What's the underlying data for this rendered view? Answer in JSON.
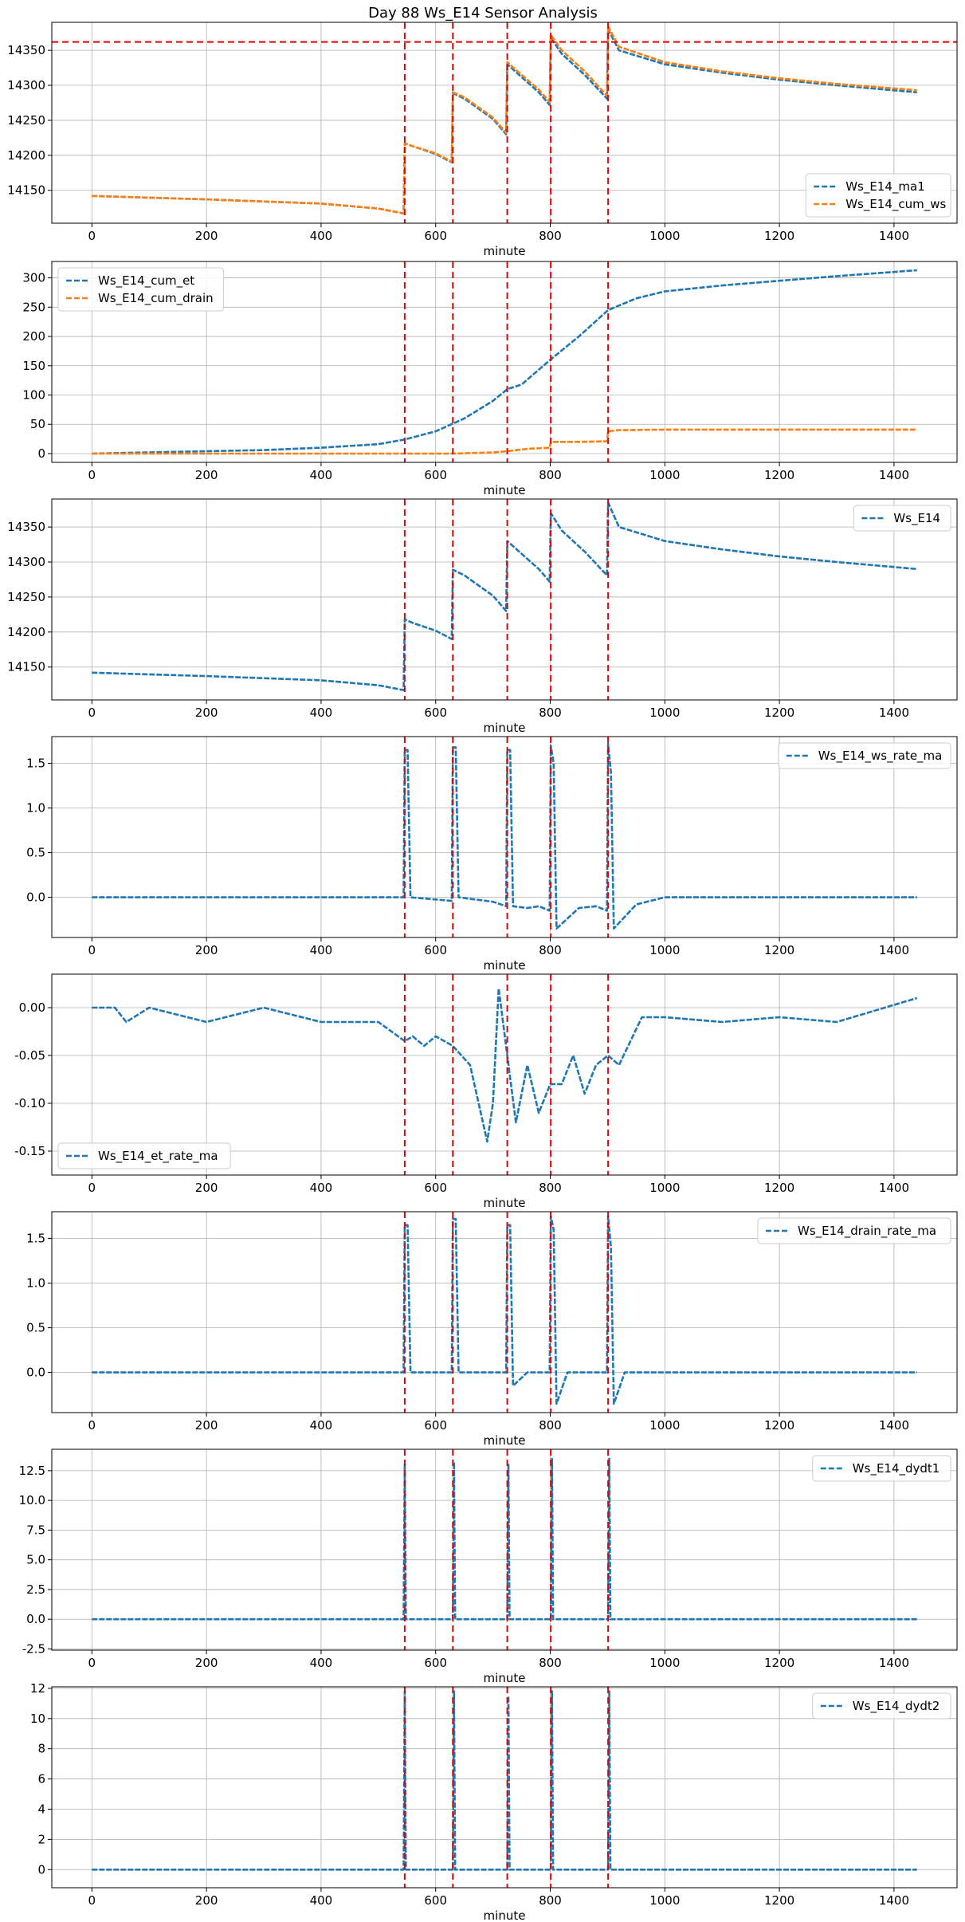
{
  "figure_title": "Day 88 Ws_E14 Sensor Analysis",
  "colors": {
    "blue": "#1f77b4",
    "orange": "#ff7f0e",
    "marker_red": "#e60000",
    "grid": "#b0b0b0"
  },
  "event_lines": [
    546,
    630,
    725,
    801,
    901
  ],
  "chart_data": [
    {
      "type": "line",
      "xlabel": "minute",
      "xlim": [
        -70,
        1510
      ],
      "xticks": [
        0,
        200,
        400,
        600,
        800,
        1000,
        1200,
        1400
      ],
      "ylim": [
        14103,
        14390
      ],
      "yticks": [
        14150,
        14200,
        14250,
        14300,
        14350
      ],
      "hline": 14362,
      "legend": "bottom-right",
      "series": [
        {
          "name": "Ws_E14_ma1",
          "color": "#1f77b4",
          "style": "dashed",
          "x": [
            0,
            200,
            400,
            500,
            544,
            546,
            560,
            600,
            628,
            630,
            650,
            700,
            723,
            725,
            740,
            780,
            799,
            801,
            820,
            860,
            899,
            901,
            920,
            1000,
            1100,
            1200,
            1300,
            1440
          ],
          "y": [
            14142,
            14137,
            14131,
            14124,
            14117,
            14217,
            14213,
            14202,
            14190,
            14289,
            14281,
            14252,
            14230,
            14330,
            14319,
            14290,
            14272,
            14368,
            14345,
            14315,
            14281,
            14380,
            14350,
            14330,
            14318,
            14308,
            14300,
            14290
          ]
        },
        {
          "name": "Ws_E14_cum_ws",
          "color": "#ff7f0e",
          "style": "dashed",
          "x": [
            0,
            200,
            400,
            500,
            544,
            546,
            560,
            600,
            628,
            630,
            650,
            700,
            723,
            725,
            740,
            780,
            799,
            801,
            820,
            860,
            899,
            901,
            920,
            1000,
            1100,
            1200,
            1300,
            1440
          ],
          "y": [
            14142,
            14137,
            14131,
            14124,
            14117,
            14217,
            14213,
            14203,
            14191,
            14290,
            14283,
            14254,
            14232,
            14333,
            14322,
            14294,
            14276,
            14372,
            14350,
            14320,
            14285,
            14384,
            14355,
            14333,
            14320,
            14310,
            14302,
            14293
          ]
        }
      ]
    },
    {
      "type": "line",
      "xlabel": "minute",
      "xlim": [
        -70,
        1510
      ],
      "xticks": [
        0,
        200,
        400,
        600,
        800,
        1000,
        1200,
        1400
      ],
      "ylim": [
        -15,
        328
      ],
      "yticks": [
        0,
        50,
        100,
        150,
        200,
        250,
        300
      ],
      "legend": "top-left",
      "series": [
        {
          "name": "Ws_E14_cum_et",
          "color": "#1f77b4",
          "style": "dashed",
          "x": [
            0,
            100,
            200,
            300,
            400,
            500,
            546,
            600,
            650,
            700,
            725,
            750,
            800,
            850,
            901,
            950,
            1000,
            1100,
            1200,
            1300,
            1440
          ],
          "y": [
            0,
            2,
            4,
            6,
            10,
            16,
            24,
            38,
            60,
            90,
            110,
            118,
            160,
            200,
            245,
            265,
            277,
            287,
            295,
            303,
            313
          ]
        },
        {
          "name": "Ws_E14_cum_drain",
          "color": "#ff7f0e",
          "style": "dashed",
          "x": [
            0,
            546,
            630,
            700,
            725,
            760,
            799,
            801,
            850,
            899,
            901,
            920,
            1000,
            1440
          ],
          "y": [
            0,
            0,
            0,
            2,
            4,
            8,
            10,
            20,
            20,
            21,
            38,
            40,
            41,
            41
          ]
        }
      ]
    },
    {
      "type": "line",
      "xlabel": "minute",
      "xlim": [
        -70,
        1510
      ],
      "xticks": [
        0,
        200,
        400,
        600,
        800,
        1000,
        1200,
        1400
      ],
      "ylim": [
        14103,
        14390
      ],
      "yticks": [
        14150,
        14200,
        14250,
        14300,
        14350
      ],
      "legend": "top-right",
      "series": [
        {
          "name": "Ws_E14",
          "color": "#1f77b4",
          "style": "dashed",
          "x": [
            0,
            200,
            400,
            500,
            544,
            546,
            560,
            600,
            628,
            630,
            650,
            700,
            723,
            725,
            740,
            780,
            799,
            801,
            820,
            860,
            899,
            901,
            920,
            1000,
            1100,
            1200,
            1300,
            1440
          ],
          "y": [
            14142,
            14137,
            14131,
            14124,
            14117,
            14218,
            14213,
            14202,
            14190,
            14289,
            14281,
            14252,
            14230,
            14330,
            14319,
            14290,
            14272,
            14370,
            14345,
            14315,
            14281,
            14385,
            14350,
            14330,
            14318,
            14308,
            14300,
            14290
          ]
        }
      ]
    },
    {
      "type": "line",
      "xlabel": "minute",
      "xlim": [
        -70,
        1510
      ],
      "xticks": [
        0,
        200,
        400,
        600,
        800,
        1000,
        1200,
        1400
      ],
      "ylim": [
        -0.45,
        1.8
      ],
      "yticks": [
        0.0,
        0.5,
        1.0,
        1.5
      ],
      "legend": "top-right",
      "series": [
        {
          "name": "Ws_E14_ws_rate_ma",
          "color": "#1f77b4",
          "style": "dashed",
          "x": [
            0,
            544,
            546,
            551,
            556,
            628,
            630,
            635,
            640,
            700,
            723,
            725,
            730,
            735,
            760,
            780,
            799,
            801,
            806,
            811,
            850,
            880,
            899,
            901,
            906,
            911,
            950,
            1000,
            1200,
            1440
          ],
          "y": [
            0,
            0,
            1.65,
            1.65,
            0,
            -0.04,
            1.68,
            1.68,
            0,
            -0.05,
            -0.1,
            1.65,
            1.65,
            -0.1,
            -0.12,
            -0.1,
            -0.15,
            1.7,
            1.5,
            -0.35,
            -0.12,
            -0.1,
            -0.15,
            1.72,
            1.4,
            -0.35,
            -0.08,
            0,
            0,
            0
          ]
        }
      ]
    },
    {
      "type": "line",
      "xlabel": "minute",
      "xlim": [
        -70,
        1510
      ],
      "xticks": [
        0,
        200,
        400,
        600,
        800,
        1000,
        1200,
        1400
      ],
      "ylim": [
        -0.175,
        0.035
      ],
      "yticks": [
        0.0,
        -0.05,
        -0.1,
        -0.15
      ],
      "legend": "bottom-left",
      "series": [
        {
          "name": "Ws_E14_et_rate_ma",
          "color": "#1f77b4",
          "style": "dashed",
          "x": [
            0,
            40,
            60,
            100,
            200,
            300,
            400,
            500,
            546,
            560,
            580,
            600,
            630,
            660,
            690,
            700,
            710,
            725,
            740,
            760,
            780,
            800,
            820,
            840,
            860,
            880,
            901,
            920,
            960,
            1000,
            1100,
            1200,
            1300,
            1440
          ],
          "y": [
            0,
            0,
            -0.015,
            0,
            -0.015,
            0,
            -0.015,
            -0.015,
            -0.035,
            -0.03,
            -0.04,
            -0.03,
            -0.04,
            -0.06,
            -0.14,
            -0.1,
            0.02,
            -0.05,
            -0.12,
            -0.06,
            -0.11,
            -0.08,
            -0.08,
            -0.05,
            -0.09,
            -0.06,
            -0.05,
            -0.06,
            -0.01,
            -0.01,
            -0.015,
            -0.01,
            -0.015,
            0.01
          ]
        }
      ]
    },
    {
      "type": "line",
      "xlabel": "minute",
      "xlim": [
        -70,
        1510
      ],
      "xticks": [
        0,
        200,
        400,
        600,
        800,
        1000,
        1200,
        1400
      ],
      "ylim": [
        -0.45,
        1.8
      ],
      "yticks": [
        0.0,
        0.5,
        1.0,
        1.5
      ],
      "legend": "top-right",
      "series": [
        {
          "name": "Ws_E14_drain_rate_ma",
          "color": "#1f77b4",
          "style": "dashed",
          "x": [
            0,
            544,
            546,
            551,
            556,
            566,
            628,
            630,
            635,
            640,
            650,
            723,
            725,
            730,
            735,
            760,
            799,
            801,
            806,
            811,
            830,
            899,
            901,
            906,
            911,
            930,
            1000,
            1440
          ],
          "y": [
            0,
            0,
            1.65,
            1.65,
            0,
            0,
            0,
            1.72,
            1.72,
            0,
            0,
            0,
            1.65,
            1.65,
            -0.15,
            0,
            0,
            1.75,
            1.6,
            -0.35,
            0,
            0,
            1.75,
            1.4,
            -0.35,
            0,
            0,
            0
          ]
        }
      ]
    },
    {
      "type": "line",
      "xlabel": "minute",
      "xlim": [
        -70,
        1510
      ],
      "xticks": [
        0,
        200,
        400,
        600,
        800,
        1000,
        1200,
        1400
      ],
      "ylim": [
        -2.6,
        14.3
      ],
      "yticks": [
        -2.5,
        0.0,
        2.5,
        5.0,
        7.5,
        10.0,
        12.5
      ],
      "legend": "top-right",
      "series": [
        {
          "name": "Ws_E14_dydt1",
          "color": "#1f77b4",
          "style": "dashed",
          "x": [
            0,
            544,
            546,
            548,
            630,
            632,
            634,
            725,
            727,
            729,
            801,
            803,
            805,
            901,
            903,
            905,
            1440
          ],
          "y": [
            0,
            0,
            13,
            0,
            0,
            13.2,
            0,
            0,
            13,
            0,
            0,
            13.5,
            0,
            0,
            13.5,
            0,
            0
          ]
        }
      ]
    },
    {
      "type": "line",
      "xlabel": "minute",
      "xlim": [
        -70,
        1510
      ],
      "xticks": [
        0,
        200,
        400,
        600,
        800,
        1000,
        1200,
        1400
      ],
      "ylim": [
        -1.2,
        12.1
      ],
      "yticks": [
        0,
        2,
        4,
        6,
        8,
        10,
        12
      ],
      "legend": "top-right",
      "series": [
        {
          "name": "Ws_E14_dydt2",
          "color": "#1f77b4",
          "style": "dashed",
          "x": [
            0,
            544,
            546,
            548,
            630,
            632,
            634,
            725,
            727,
            729,
            801,
            803,
            805,
            901,
            903,
            905,
            1440
          ],
          "y": [
            0,
            0,
            11.8,
            0,
            0,
            11.8,
            0,
            0,
            11.5,
            0,
            0,
            11.8,
            0,
            0,
            11.8,
            0,
            0
          ]
        }
      ]
    }
  ]
}
